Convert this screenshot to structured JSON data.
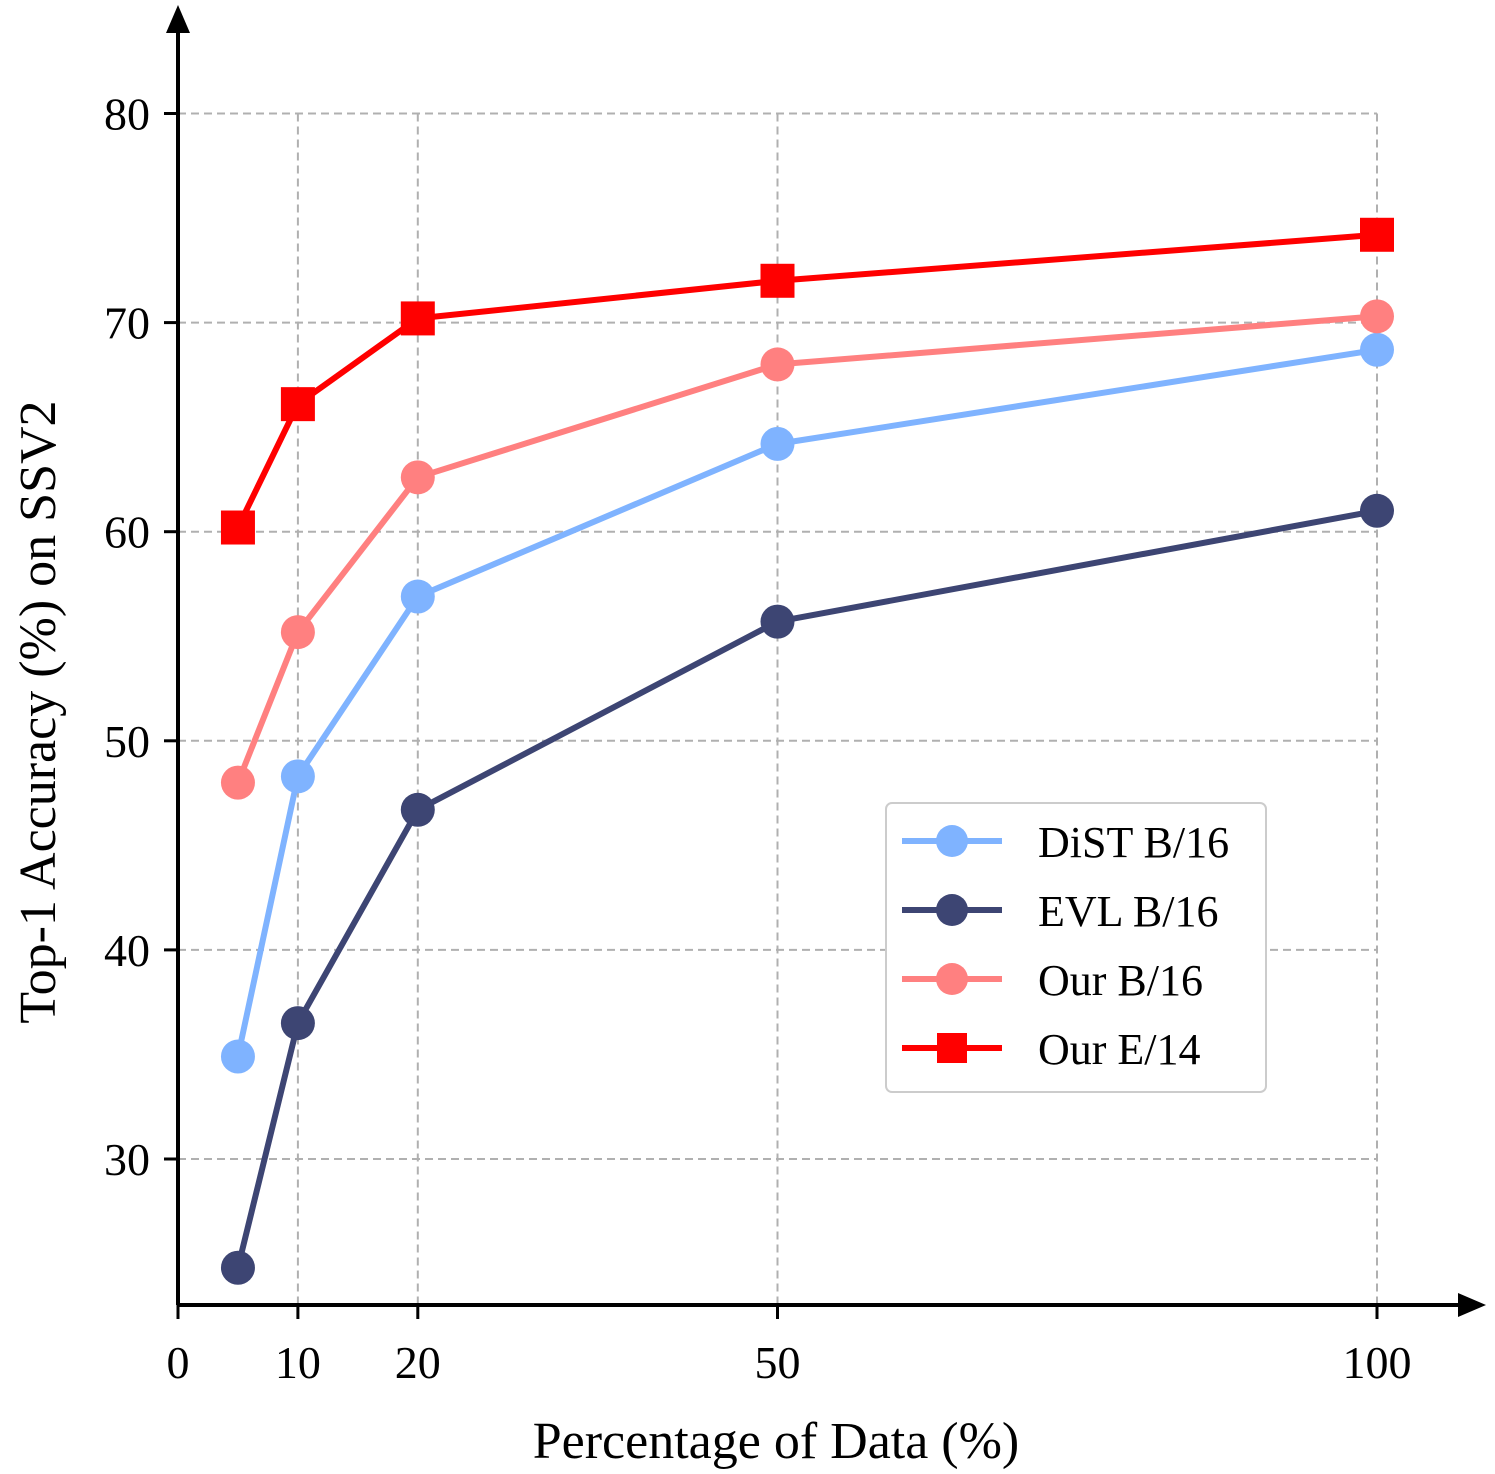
{
  "chart_data": {
    "type": "line",
    "title": "",
    "xlabel": "Percentage of Data (%)",
    "ylabel": "Top-1 Accuracy (%) on SSV2",
    "x_ticks": [
      0,
      10,
      20,
      50,
      100
    ],
    "y_ticks": [
      30,
      40,
      50,
      60,
      70,
      80
    ],
    "xlim": [
      0,
      100
    ],
    "ylim": [
      23,
      84
    ],
    "grid": true,
    "legend_position": "lower-right",
    "series": [
      {
        "name": "DiST B/16",
        "color": "#7fb3ff",
        "marker": "circle",
        "x": [
          5,
          10,
          20,
          50,
          100
        ],
        "y": [
          34.9,
          48.3,
          56.9,
          64.2,
          68.7
        ]
      },
      {
        "name": "EVL B/16",
        "color": "#3d4573",
        "marker": "circle",
        "x": [
          5,
          10,
          20,
          50,
          100
        ],
        "y": [
          24.8,
          36.5,
          46.7,
          55.7,
          61.0
        ]
      },
      {
        "name": "Our B/16",
        "color": "#ff8080",
        "marker": "circle",
        "x": [
          5,
          10,
          20,
          50,
          100
        ],
        "y": [
          48.0,
          55.2,
          62.6,
          68.0,
          70.3
        ]
      },
      {
        "name": "Our E/14",
        "color": "#ff0000",
        "marker": "square",
        "x": [
          5,
          10,
          20,
          50,
          100
        ],
        "y": [
          60.2,
          66.1,
          70.2,
          72.0,
          74.2
        ]
      }
    ]
  }
}
